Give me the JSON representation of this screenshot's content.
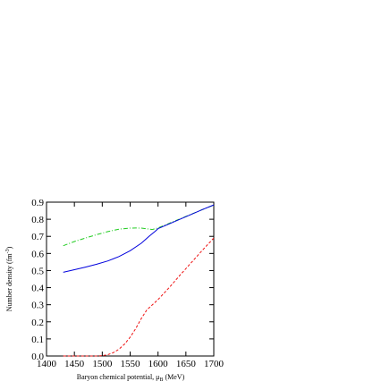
{
  "chart_data": {
    "type": "line",
    "title": "",
    "xlabel": "Baryon chemical potential, μ",
    "xlabel_sub": "B",
    "xlabel_unit": " (MeV)",
    "ylabel": "Number density (fm",
    "ylabel_sup": "-3",
    "ylabel_end": ")",
    "xlim": [
      1400,
      1700
    ],
    "ylim": [
      0.0,
      0.9
    ],
    "xticks": [
      "1400",
      "1450",
      "1500",
      "1550",
      "1600",
      "1650",
      "1700"
    ],
    "yticks": [
      "0.0",
      "0.1",
      "0.2",
      "0.3",
      "0.4",
      "0.5",
      "0.6",
      "0.7",
      "0.8",
      "0.9"
    ],
    "grid": false,
    "legend": "none",
    "series": [
      {
        "color": "#22cc22",
        "style": "dash-dot",
        "x": [
          1430,
          1450,
          1470,
          1490,
          1510,
          1530,
          1550,
          1560,
          1570,
          1580,
          1590,
          1600,
          1620,
          1640,
          1660,
          1680,
          1700
        ],
        "y": [
          0.645,
          0.67,
          0.69,
          0.71,
          0.728,
          0.742,
          0.748,
          0.749,
          0.748,
          0.744,
          0.74,
          0.75,
          0.776,
          0.803,
          0.83,
          0.857,
          0.883
        ]
      },
      {
        "color": "#0000dd",
        "style": "solid",
        "x": [
          1430,
          1450,
          1470,
          1490,
          1510,
          1530,
          1550,
          1570,
          1585,
          1595,
          1600,
          1620,
          1640,
          1660,
          1680,
          1700
        ],
        "y": [
          0.49,
          0.505,
          0.52,
          0.537,
          0.556,
          0.582,
          0.616,
          0.66,
          0.703,
          0.73,
          0.745,
          0.773,
          0.801,
          0.829,
          0.857,
          0.884
        ]
      },
      {
        "color": "#ee1111",
        "style": "dashed",
        "x": [
          1430,
          1450,
          1470,
          1490,
          1500,
          1510,
          1520,
          1530,
          1540,
          1550,
          1560,
          1570,
          1580,
          1590,
          1600,
          1620,
          1640,
          1660,
          1680,
          1700
        ],
        "y": [
          0.0,
          0.0,
          0.0,
          0.0,
          0.002,
          0.008,
          0.02,
          0.04,
          0.07,
          0.11,
          0.16,
          0.22,
          0.27,
          0.3,
          0.33,
          0.4,
          0.475,
          0.548,
          0.62,
          0.69
        ]
      }
    ]
  }
}
